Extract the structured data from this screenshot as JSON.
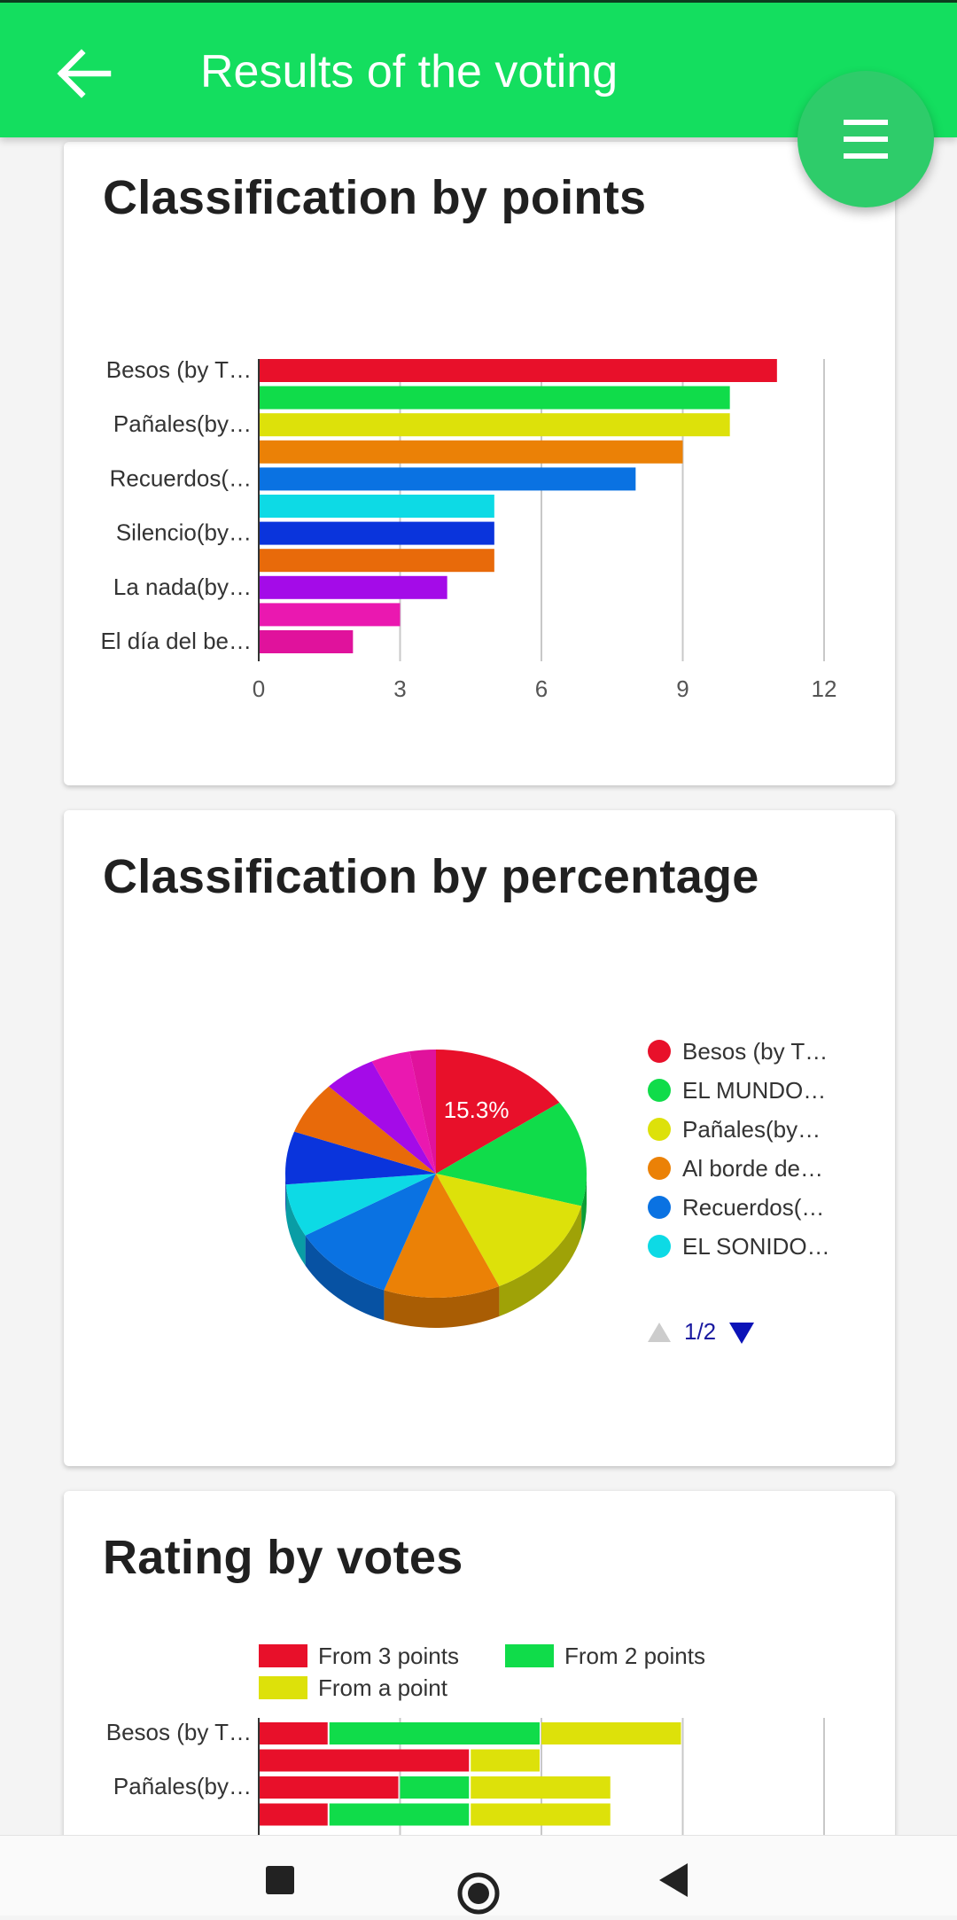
{
  "appbar": {
    "title": "Results of the voting",
    "back_icon": "arrow-left-icon",
    "menu_icon": "hamburger-menu-icon"
  },
  "colors": {
    "appbar": "#14de5f",
    "series": [
      "#e8102a",
      "#10dc4a",
      "#dde10a",
      "#eb8106",
      "#0a72e2",
      "#0ddae5",
      "#0a34dc",
      "#e86a0a",
      "#a40be8",
      "#ea18b0",
      "#e0129c"
    ]
  },
  "cards": [
    {
      "title": "Classification by points"
    },
    {
      "title": "Classification by percentage"
    },
    {
      "title": "Rating by votes"
    }
  ],
  "chart_data": [
    {
      "type": "bar",
      "orientation": "horizontal",
      "title": "Classification by points",
      "categories": [
        "Besos (by T…",
        "",
        "Pañales(by…",
        "",
        "Recuerdos(…",
        "",
        "Silencio(by…",
        "",
        "La nada(by…",
        "",
        "El día del be…"
      ],
      "values": [
        11,
        10,
        10,
        9,
        8,
        5,
        5,
        5,
        4,
        3,
        2
      ],
      "xticks": [
        0,
        3,
        6,
        9,
        12
      ],
      "xlim": [
        0,
        12
      ],
      "grid": true
    },
    {
      "type": "pie",
      "title": "Classification by percentage",
      "style": "3d",
      "visible_slice_label": "15.3%",
      "legend": [
        "Besos (by T…",
        "EL MUNDO…",
        "Pañales(by…",
        "Al borde de…",
        "Recuerdos(…",
        "EL SONIDO…"
      ],
      "legend_page": "1/2",
      "legend_placement": "right",
      "slices": [
        {
          "value": 15.3
        },
        {
          "value": 13.9
        },
        {
          "value": 13.9
        },
        {
          "value": 12.5
        },
        {
          "value": 11.1
        },
        {
          "value": 6.9
        },
        {
          "value": 6.9
        },
        {
          "value": 6.9
        },
        {
          "value": 5.6
        },
        {
          "value": 4.2
        },
        {
          "value": 2.8
        }
      ]
    },
    {
      "type": "bar",
      "orientation": "horizontal",
      "stacked": true,
      "title": "Rating by votes",
      "legend_placement": "top",
      "categories": [
        "Besos (by T…",
        "",
        "Pañales(by…",
        ""
      ],
      "series": [
        {
          "name": "From 3 points",
          "color": "#e8102a",
          "values": [
            1,
            3,
            2,
            1
          ]
        },
        {
          "name": "From 2 points",
          "color": "#10dc4a",
          "values": [
            3,
            0,
            1,
            2
          ]
        },
        {
          "name": "From a point",
          "color": "#dde10a",
          "values": [
            2,
            1,
            2,
            2
          ]
        }
      ],
      "xlim": [
        0,
        8
      ],
      "grid": true
    }
  ],
  "navbar": {
    "items": [
      "recents-square-icon",
      "home-circle-icon",
      "back-triangle-icon"
    ]
  }
}
